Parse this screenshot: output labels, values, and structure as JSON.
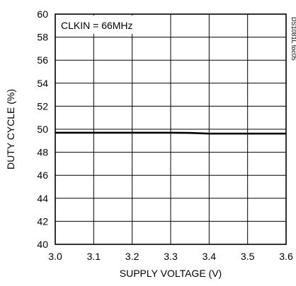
{
  "chart_data": {
    "type": "line",
    "title": "",
    "xlabel": "SUPPLY VOLTAGE (V)",
    "ylabel": "DUTY CYCLE (%)",
    "xlim": [
      3.0,
      3.6
    ],
    "ylim": [
      40,
      60
    ],
    "xticks": [
      3.0,
      3.1,
      3.2,
      3.3,
      3.4,
      3.5,
      3.6
    ],
    "yticks": [
      40,
      42,
      44,
      46,
      48,
      50,
      52,
      54,
      56,
      58,
      60
    ],
    "xtick_labels": [
      "3.0",
      "3.1",
      "3.2",
      "3.3",
      "3.4",
      "3.5",
      "3.6"
    ],
    "ytick_labels": [
      "40",
      "42",
      "44",
      "46",
      "48",
      "50",
      "52",
      "54",
      "56",
      "58",
      "60"
    ],
    "grid": true,
    "annotation": "CLKIN = 66MHz",
    "watermark": "DS1081L toc05",
    "series": [
      {
        "x": [
          3.0,
          3.1,
          3.2,
          3.3,
          3.35,
          3.4,
          3.5,
          3.6
        ],
        "y": [
          49.7,
          49.7,
          49.7,
          49.7,
          49.68,
          49.62,
          49.62,
          49.62
        ]
      }
    ]
  }
}
